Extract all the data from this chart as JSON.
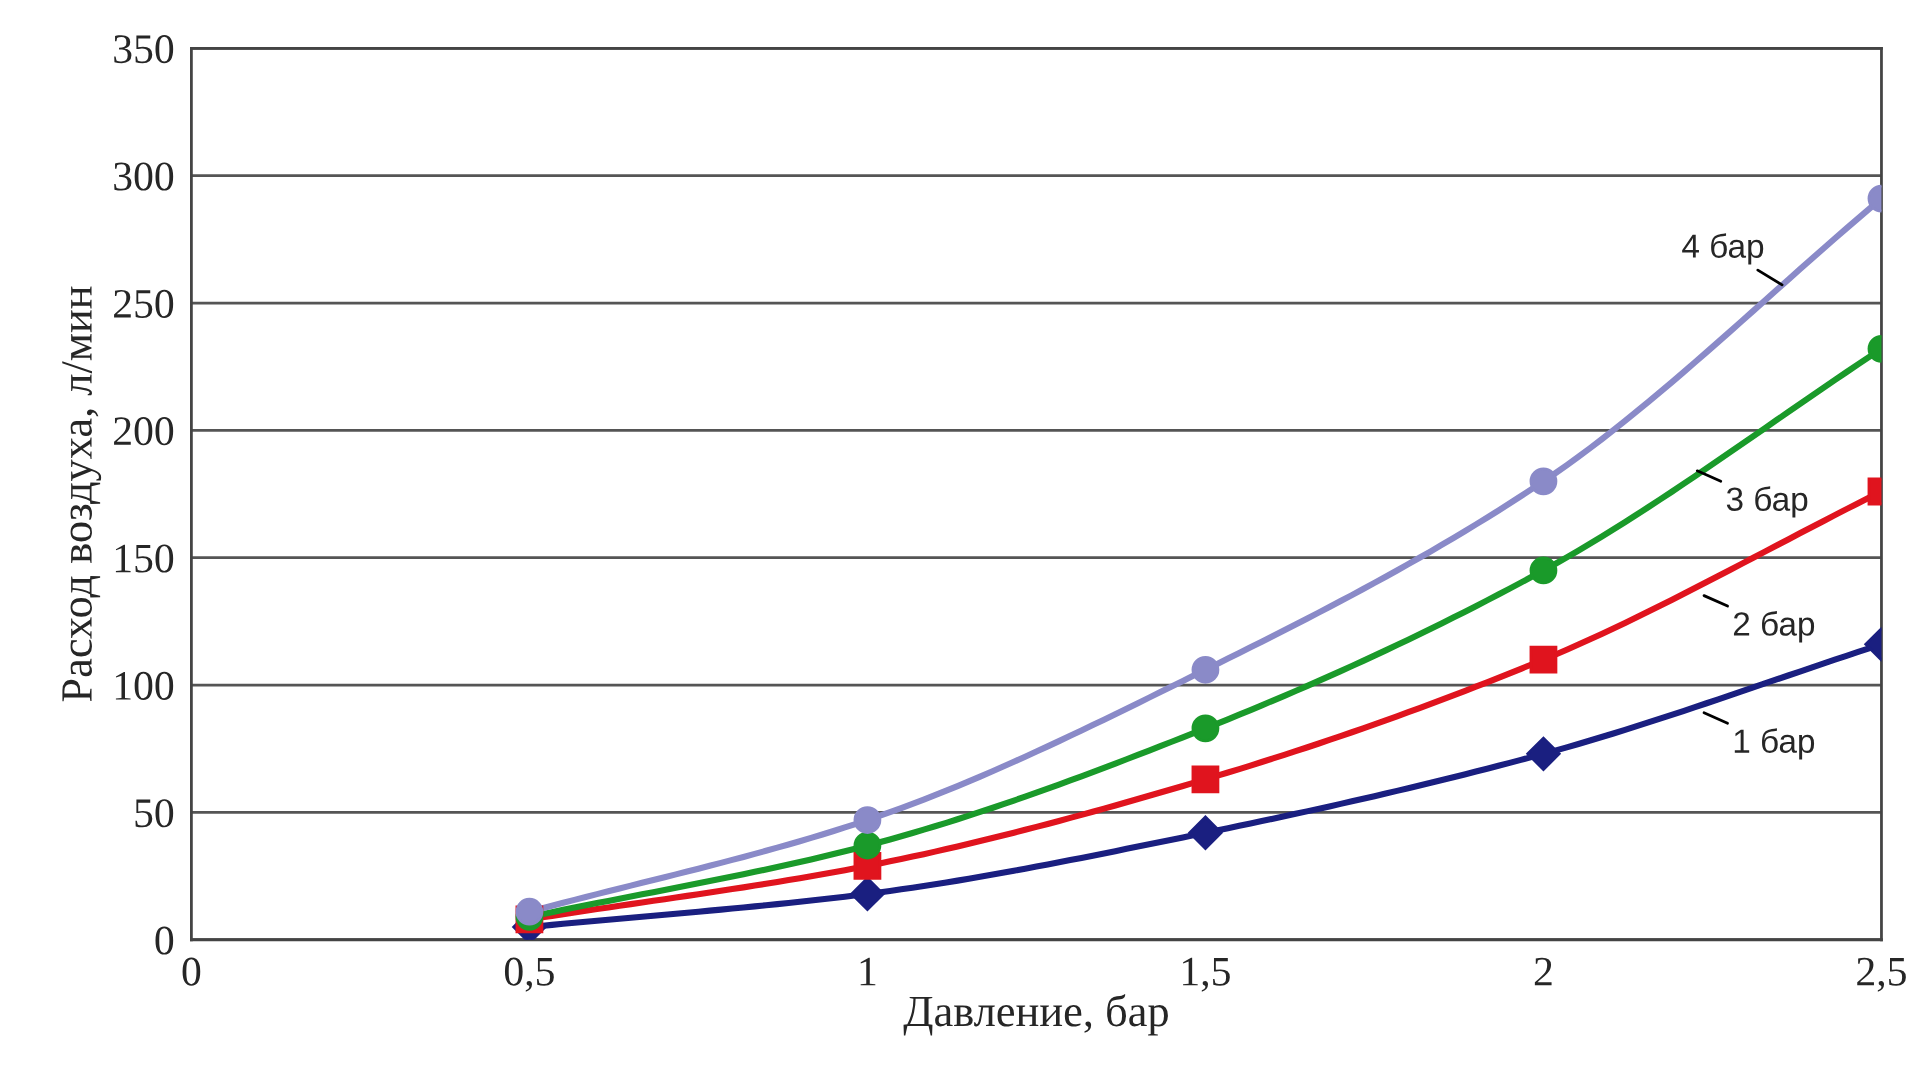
{
  "chart_data": {
    "type": "line",
    "xlabel": "Давление, бар",
    "ylabel": "Расход воздуха, л/мин",
    "x": [
      0.5,
      1,
      1.5,
      2,
      2.5
    ],
    "series": [
      {
        "color": "#1a1f80",
        "marker": "diamond",
        "values": [
          5,
          18,
          42,
          73,
          116
        ]
      },
      {
        "color": "#e0141e",
        "marker": "square",
        "values": [
          8,
          29,
          63,
          110,
          176
        ]
      },
      {
        "color": "#1a9a2a",
        "marker": "circle",
        "values": [
          9,
          37,
          83,
          145,
          232
        ]
      },
      {
        "color": "#8a8ac8",
        "marker": "circle",
        "values": [
          11,
          47,
          106,
          180,
          291
        ]
      }
    ],
    "xlim": [
      0,
      2.5
    ],
    "xticks": [
      0,
      {
        "value": 0.5,
        "label": "0,5"
      },
      1,
      {
        "value": 1.5,
        "label": "1,5"
      },
      2,
      {
        "value": 2.5,
        "label": "2,5"
      }
    ],
    "ylim": [
      0,
      350
    ],
    "yticks": [
      0,
      50,
      100,
      150,
      200,
      250,
      300,
      350
    ],
    "grid": "y",
    "line_style": "solid",
    "annotations": [
      {
        "text": "1 бар",
        "x": 2.23,
        "y": 90
      },
      {
        "text": "2 бар",
        "x": 2.23,
        "y": 136
      },
      {
        "text": "3 бар",
        "x": 2.22,
        "y": 185
      },
      {
        "text": "4 бар",
        "x": 2.36,
        "y": 256
      }
    ]
  }
}
